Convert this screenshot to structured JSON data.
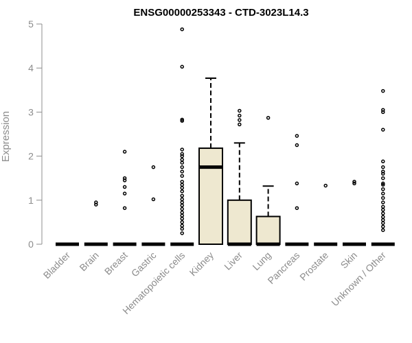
{
  "chart_data": {
    "type": "box",
    "title": "ENSG00000253343 - CTD-3023L14.3",
    "xlabel": "",
    "ylabel": "Expression",
    "ylim": [
      0,
      5
    ],
    "yticks": [
      0,
      1,
      2,
      3,
      4,
      5
    ],
    "grid": false,
    "legend": "none",
    "colors": {
      "box_fill": "#eee8d0",
      "stroke": "#000000",
      "axis": "#8c8c8c"
    },
    "categories": [
      "Bladder",
      "Brain",
      "Breast",
      "Gastric",
      "Hematopoietic cells",
      "Kidney",
      "Liver",
      "Lung",
      "Pancreas",
      "Prostate",
      "Skin",
      "Unknown / Other"
    ],
    "boxes": [
      {
        "category": "Bladder",
        "q1": 0,
        "median": 0,
        "q3": 0,
        "whisker_low": 0,
        "whisker_high": 0,
        "outliers": []
      },
      {
        "category": "Brain",
        "q1": 0,
        "median": 0,
        "q3": 0,
        "whisker_low": 0,
        "whisker_high": 0,
        "outliers": [
          0.9,
          0.95
        ]
      },
      {
        "category": "Breast",
        "q1": 0,
        "median": 0,
        "q3": 0,
        "whisker_low": 0,
        "whisker_high": 0,
        "outliers": [
          0.82,
          1.15,
          1.3,
          1.45,
          1.5,
          2.1
        ]
      },
      {
        "category": "Gastric",
        "q1": 0,
        "median": 0,
        "q3": 0,
        "whisker_low": 0,
        "whisker_high": 0,
        "outliers": [
          1.02,
          1.75
        ]
      },
      {
        "category": "Hematopoietic cells",
        "q1": 0,
        "median": 0,
        "q3": 0,
        "whisker_low": 0,
        "whisker_high": 0,
        "outliers": [
          0.25,
          0.35,
          0.42,
          0.5,
          0.58,
          0.65,
          0.72,
          0.8,
          0.88,
          0.95,
          1.02,
          1.1,
          1.2,
          1.28,
          1.35,
          1.42,
          1.55,
          1.65,
          1.75,
          1.85,
          1.92,
          2.0,
          2.05,
          2.15,
          2.8,
          2.83,
          4.03,
          4.88
        ]
      },
      {
        "category": "Kidney",
        "q1": 0,
        "median": 1.75,
        "q3": 2.18,
        "whisker_low": 0,
        "whisker_high": 3.77,
        "outliers": []
      },
      {
        "category": "Liver",
        "q1": 0,
        "median": 0,
        "q3": 1.0,
        "whisker_low": 0,
        "whisker_high": 2.3,
        "outliers": [
          2.72,
          2.82,
          2.92,
          3.03
        ]
      },
      {
        "category": "Lung",
        "q1": 0,
        "median": 0,
        "q3": 0.63,
        "whisker_low": 0,
        "whisker_high": 1.32,
        "outliers": [
          2.87
        ]
      },
      {
        "category": "Pancreas",
        "q1": 0,
        "median": 0,
        "q3": 0,
        "whisker_low": 0,
        "whisker_high": 0,
        "outliers": [
          0.82,
          1.38,
          2.25,
          2.46
        ]
      },
      {
        "category": "Prostate",
        "q1": 0,
        "median": 0,
        "q3": 0,
        "whisker_low": 0,
        "whisker_high": 0,
        "outliers": [
          1.33
        ]
      },
      {
        "category": "Skin",
        "q1": 0,
        "median": 0,
        "q3": 0,
        "whisker_low": 0,
        "whisker_high": 0,
        "outliers": [
          1.38,
          1.42
        ]
      },
      {
        "category": "Unknown / Other",
        "q1": 0,
        "median": 0,
        "q3": 0,
        "whisker_low": 0,
        "whisker_high": 0,
        "outliers": [
          0.32,
          0.4,
          0.48,
          0.55,
          0.62,
          0.7,
          0.78,
          0.85,
          0.95,
          1.05,
          1.15,
          1.25,
          1.35,
          1.38,
          1.5,
          1.6,
          1.65,
          1.75,
          1.88,
          2.6,
          3.0,
          3.05,
          3.48
        ]
      }
    ]
  }
}
